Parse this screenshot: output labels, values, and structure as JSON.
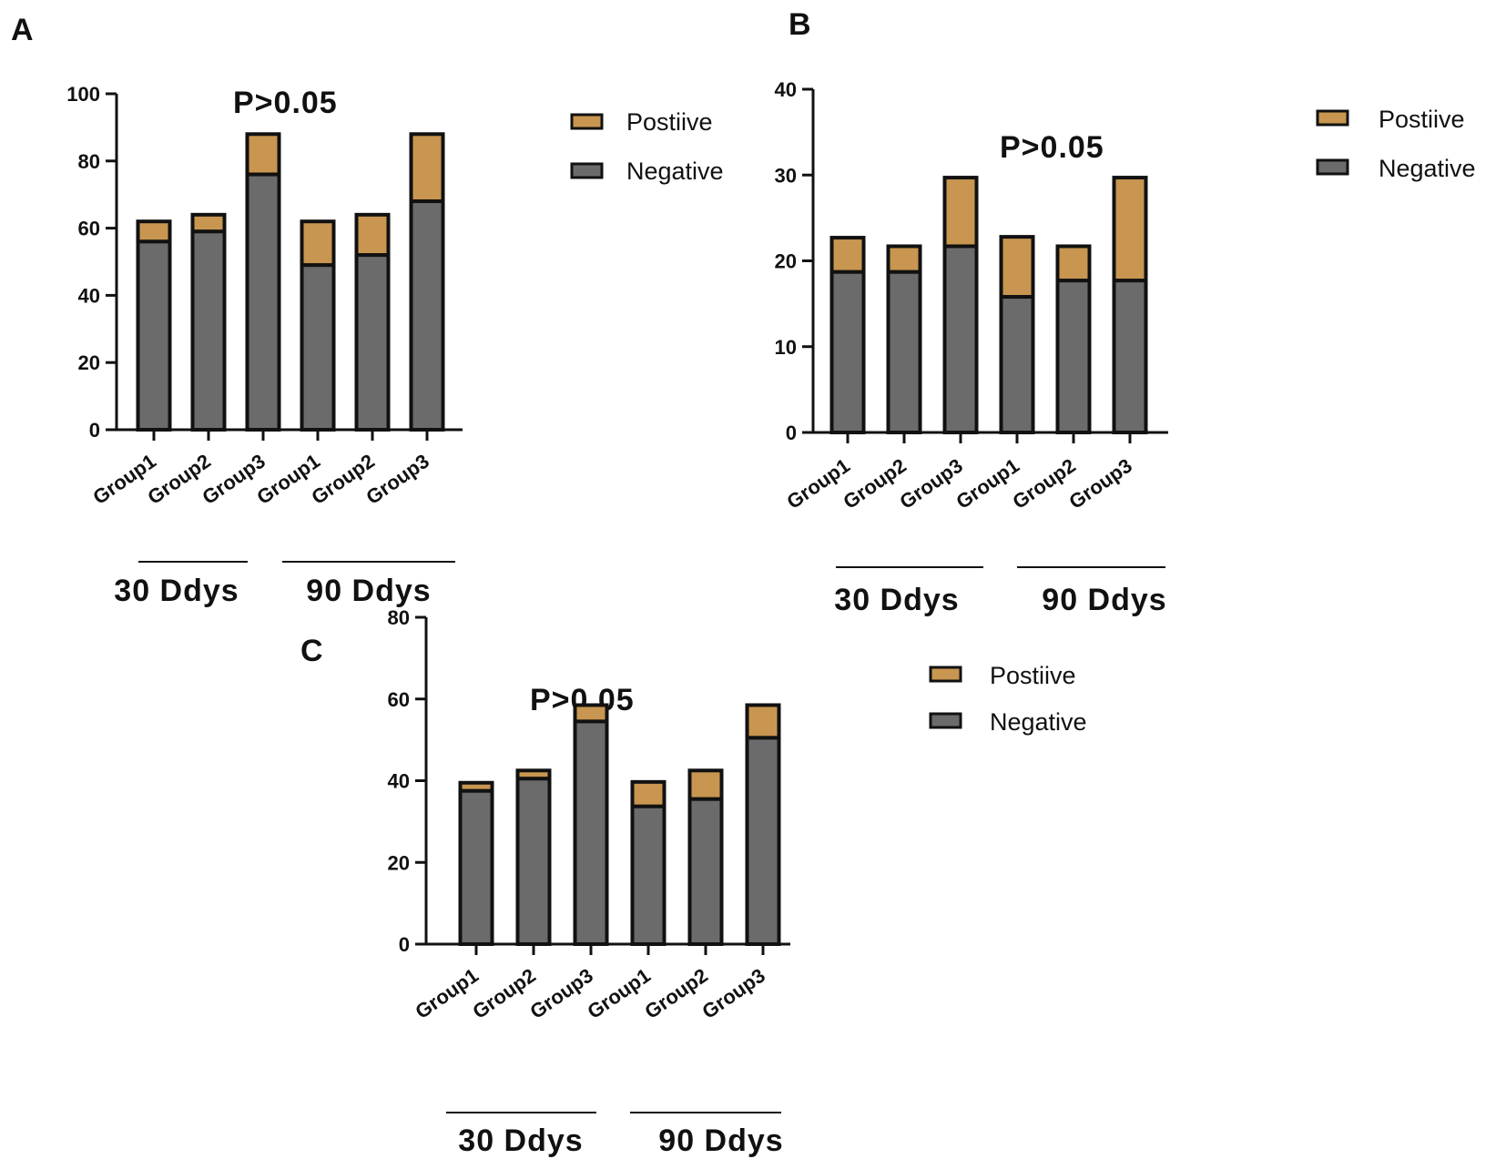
{
  "colors": {
    "positive": "#C89650",
    "negative": "#6B6B6B",
    "axis": "#111111"
  },
  "chart_data": [
    {
      "type": "bar",
      "stacked": true,
      "panel": "A",
      "annotation": "P>0.05",
      "categories": [
        "Group1",
        "Group2",
        "Group3",
        "Group1",
        "Group2",
        "Group3"
      ],
      "group_labels": [
        "30 Ddys",
        "90 Ddys"
      ],
      "series": [
        {
          "name": "Negative",
          "values": [
            56,
            59,
            76,
            49,
            52,
            68
          ]
        },
        {
          "name": "Postiive",
          "values": [
            6,
            5,
            12,
            13,
            12,
            20
          ]
        }
      ],
      "ylim": [
        0,
        100
      ],
      "yticks": [
        0,
        20,
        40,
        60,
        80,
        100
      ],
      "legend": [
        "Postiive",
        "Negative"
      ],
      "legend_position": "top-right"
    },
    {
      "type": "bar",
      "stacked": true,
      "panel": "B",
      "annotation": "P>0.05",
      "categories": [
        "Group1",
        "Group2",
        "Group3",
        "Group1",
        "Group2",
        "Group3"
      ],
      "group_labels": [
        "30 Ddys",
        "90 Ddys"
      ],
      "series": [
        {
          "name": "Negative",
          "values": [
            18.7,
            18.7,
            21.7,
            15.8,
            17.7,
            17.7
          ]
        },
        {
          "name": "Postiive",
          "values": [
            4,
            3,
            8,
            7,
            4,
            12
          ]
        }
      ],
      "ylim": [
        0,
        40
      ],
      "yticks": [
        0,
        10,
        20,
        30,
        40
      ],
      "legend": [
        "Postiive",
        "Negative"
      ],
      "legend_position": "top-right"
    },
    {
      "type": "bar",
      "stacked": true,
      "panel": "C",
      "annotation": "P>0.05",
      "categories": [
        "Group1",
        "Group2",
        "Group3",
        "Group1",
        "Group2",
        "Group3"
      ],
      "group_labels": [
        "30 Ddys",
        "90 Ddys"
      ],
      "series": [
        {
          "name": "Negative",
          "values": [
            37.5,
            40.5,
            54.5,
            33.7,
            35.5,
            50.5
          ]
        },
        {
          "name": "Postiive",
          "values": [
            2,
            2,
            4,
            6,
            7,
            8
          ]
        }
      ],
      "ylim": [
        0,
        80
      ],
      "yticks": [
        0,
        20,
        40,
        60,
        80
      ],
      "legend": [
        "Postiive",
        "Negative"
      ],
      "legend_position": "top-right"
    }
  ]
}
